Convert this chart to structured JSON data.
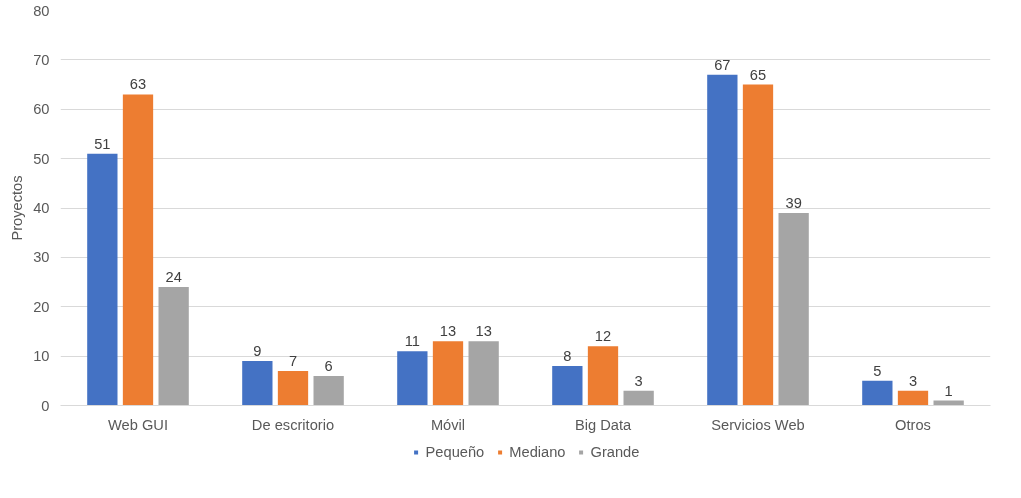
{
  "chart_data": {
    "type": "bar",
    "ylabel": "Proyectos",
    "categories": [
      "Web GUI",
      "De escritorio",
      "Móvil",
      "Big Data",
      "Servicios Web",
      "Otros"
    ],
    "series": [
      {
        "name": "Pequeño",
        "color": "#4472c4",
        "values": [
          51,
          9,
          11,
          8,
          67,
          5
        ]
      },
      {
        "name": "Mediano",
        "color": "#ed7d31",
        "values": [
          63,
          7,
          13,
          12,
          65,
          3
        ]
      },
      {
        "name": "Grande",
        "color": "#a5a5a5",
        "values": [
          24,
          6,
          13,
          3,
          39,
          1
        ]
      }
    ],
    "ylim": [
      0,
      80
    ],
    "yticks": [
      0,
      10,
      20,
      30,
      40,
      50,
      60,
      70,
      80
    ],
    "grid": "y",
    "legend": "bottom",
    "data_labels": true
  }
}
